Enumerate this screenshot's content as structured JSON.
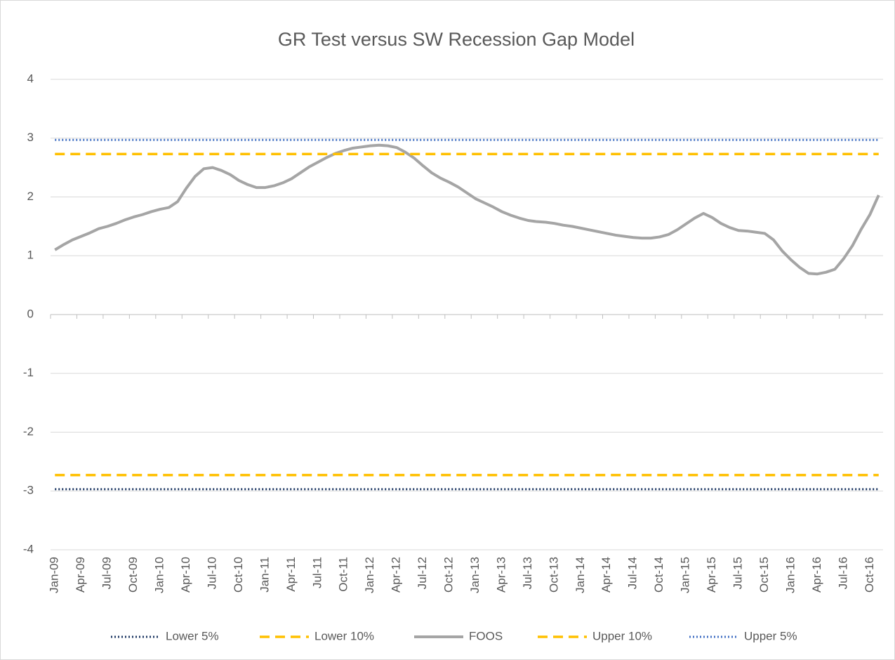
{
  "chart_data": {
    "type": "line",
    "title": "GR Test versus SW Recession Gap Model",
    "categories": [
      "Jan-09",
      null,
      null,
      "Apr-09",
      null,
      null,
      "Jul-09",
      null,
      null,
      "Oct-09",
      null,
      null,
      "Jan-10",
      null,
      null,
      "Apr-10",
      null,
      null,
      "Jul-10",
      null,
      null,
      "Oct-10",
      null,
      null,
      "Jan-11",
      null,
      null,
      "Apr-11",
      null,
      null,
      "Jul-11",
      null,
      null,
      "Oct-11",
      null,
      null,
      "Jan-12",
      null,
      null,
      "Apr-12",
      null,
      null,
      "Jul-12",
      null,
      null,
      "Oct-12",
      null,
      null,
      "Jan-13",
      null,
      null,
      "Apr-13",
      null,
      null,
      "Jul-13",
      null,
      null,
      "Oct-13",
      null,
      null,
      "Jan-14",
      null,
      null,
      "Apr-14",
      null,
      null,
      "Jul-14",
      null,
      null,
      "Oct-14",
      null,
      null,
      "Jan-15",
      null,
      null,
      "Apr-15",
      null,
      null,
      "Jul-15",
      null,
      null,
      "Oct-15",
      null,
      null,
      "Jan-16",
      null,
      null,
      "Apr-16",
      null,
      null,
      "Jul-16",
      null,
      null,
      "Oct-16",
      null
    ],
    "series": [
      {
        "name": "Lower 5%",
        "color": "#1f3864",
        "style": "dotted",
        "value": -2.97
      },
      {
        "name": "Lower 10%",
        "color": "#ffc000",
        "style": "dashed",
        "value": -2.73
      },
      {
        "name": "FOOS",
        "color": "#a5a5a5",
        "style": "solid",
        "values": [
          1.1,
          1.19,
          1.27,
          1.33,
          1.39,
          1.46,
          1.5,
          1.55,
          1.61,
          1.66,
          1.7,
          1.75,
          1.79,
          1.82,
          1.92,
          2.15,
          2.35,
          2.48,
          2.5,
          2.45,
          2.38,
          2.28,
          2.21,
          2.16,
          2.16,
          2.19,
          2.24,
          2.31,
          2.41,
          2.51,
          2.59,
          2.67,
          2.74,
          2.79,
          2.83,
          2.85,
          2.87,
          2.88,
          2.87,
          2.84,
          2.76,
          2.66,
          2.53,
          2.41,
          2.32,
          2.25,
          2.17,
          2.07,
          1.97,
          1.9,
          1.83,
          1.75,
          1.69,
          1.64,
          1.6,
          1.58,
          1.57,
          1.55,
          1.52,
          1.5,
          1.47,
          1.44,
          1.41,
          1.38,
          1.35,
          1.33,
          1.31,
          1.3,
          1.3,
          1.32,
          1.36,
          1.44,
          1.54,
          1.64,
          1.72,
          1.65,
          1.55,
          1.48,
          1.43,
          1.42,
          1.4,
          1.38,
          1.27,
          1.08,
          0.93,
          0.8,
          0.7,
          0.69,
          0.72,
          0.77,
          0.95,
          1.17,
          1.45,
          1.7,
          2.03
        ]
      },
      {
        "name": "Upper 10%",
        "color": "#ffc000",
        "style": "dashed",
        "value": 2.73
      },
      {
        "name": "Upper 5%",
        "color": "#4472c4",
        "style": "dotted",
        "value": 2.97
      }
    ],
    "ylim": [
      -4,
      4
    ],
    "yticks": [
      -4,
      -3,
      -2,
      -1,
      0,
      1,
      2,
      3,
      4
    ],
    "grid": true,
    "legend": "bottom"
  }
}
